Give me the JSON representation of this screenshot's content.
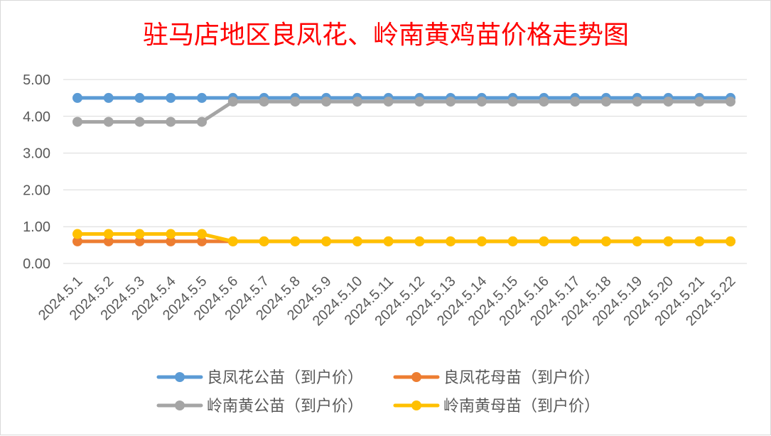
{
  "chart_data": {
    "type": "line",
    "title": "驻马店地区良凤花、岭南黄鸡苗价格走势图",
    "xlabel": "",
    "ylabel": "",
    "categories": [
      "2024.5.1",
      "2024.5.2",
      "2024.5.3",
      "2024.5.4",
      "2024.5.5",
      "2024.5.6",
      "2024.5.7",
      "2024.5.8",
      "2024.5.9",
      "2024.5.10",
      "2024.5.11",
      "2024.5.12",
      "2024.5.13",
      "2024.5.14",
      "2024.5.15",
      "2024.5.16",
      "2024.5.17",
      "2024.5.18",
      "2024.5.19",
      "2024.5.20",
      "2024.5.21",
      "2024.5.22"
    ],
    "ylim": [
      0,
      5
    ],
    "yticks": [
      "0.00",
      "1.00",
      "2.00",
      "3.00",
      "4.00",
      "5.00"
    ],
    "grid": "horizontal",
    "legend_position": "bottom",
    "series": [
      {
        "name": "良凤花公苗（到户价）",
        "color": "#5b9bd5",
        "values": [
          4.5,
          4.5,
          4.5,
          4.5,
          4.5,
          4.5,
          4.5,
          4.5,
          4.5,
          4.5,
          4.5,
          4.5,
          4.5,
          4.5,
          4.5,
          4.5,
          4.5,
          4.5,
          4.5,
          4.5,
          4.5,
          4.5
        ]
      },
      {
        "name": "良凤花母苗（到户价）",
        "color": "#ed7d31",
        "values": [
          0.6,
          0.6,
          0.6,
          0.6,
          0.6,
          0.6,
          0.6,
          0.6,
          0.6,
          0.6,
          0.6,
          0.6,
          0.6,
          0.6,
          0.6,
          0.6,
          0.6,
          0.6,
          0.6,
          0.6,
          0.6,
          0.6
        ]
      },
      {
        "name": "岭南黄公苗（到户价）",
        "color": "#a5a5a5",
        "values": [
          3.85,
          3.85,
          3.85,
          3.85,
          3.85,
          4.4,
          4.4,
          4.4,
          4.4,
          4.4,
          4.4,
          4.4,
          4.4,
          4.4,
          4.4,
          4.4,
          4.4,
          4.4,
          4.4,
          4.4,
          4.4,
          4.4
        ]
      },
      {
        "name": "岭南黄母苗（到户价）",
        "color": "#ffc000",
        "values": [
          0.8,
          0.8,
          0.8,
          0.8,
          0.8,
          0.6,
          0.6,
          0.6,
          0.6,
          0.6,
          0.6,
          0.6,
          0.6,
          0.6,
          0.6,
          0.6,
          0.6,
          0.6,
          0.6,
          0.6,
          0.6,
          0.6
        ]
      }
    ],
    "title_color": "#ff0000",
    "tick_color": "#595959",
    "gridline_color": "#d9d9d9"
  }
}
